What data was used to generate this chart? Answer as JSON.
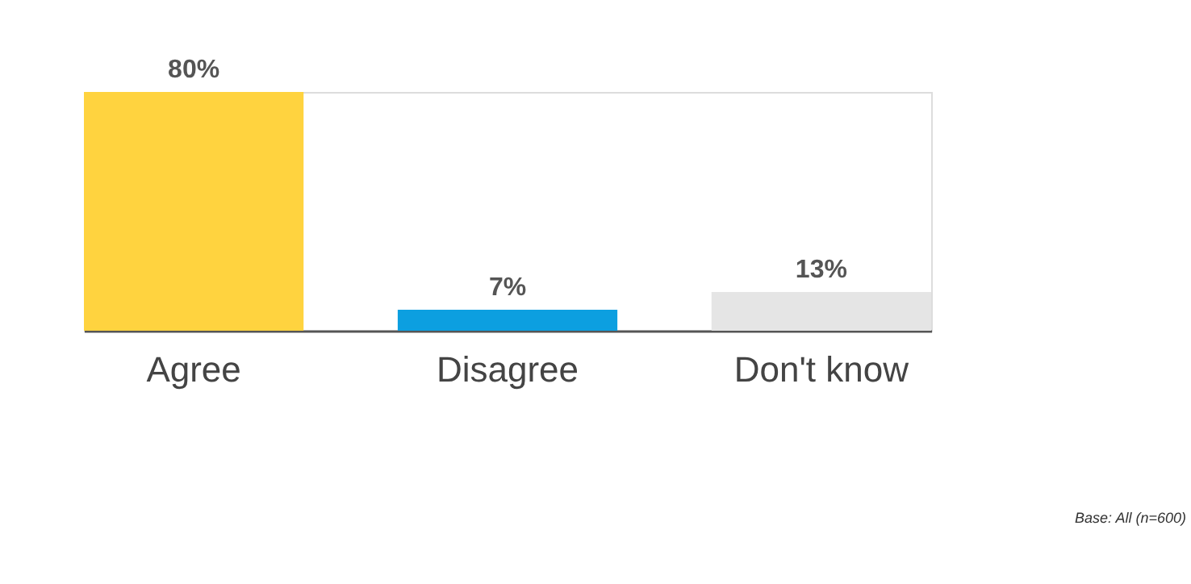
{
  "chart_data": {
    "type": "bar",
    "categories": [
      "Agree",
      "Disagree",
      "Don't know"
    ],
    "values": [
      80,
      7,
      13
    ],
    "colors": [
      "#ffd33f",
      "#0c9fe0",
      "#e5e5e5"
    ],
    "value_labels": [
      "80%",
      "7%",
      "13%"
    ],
    "grid": false,
    "legend": false,
    "annotations": [
      "Base: All (n=600)"
    ]
  }
}
